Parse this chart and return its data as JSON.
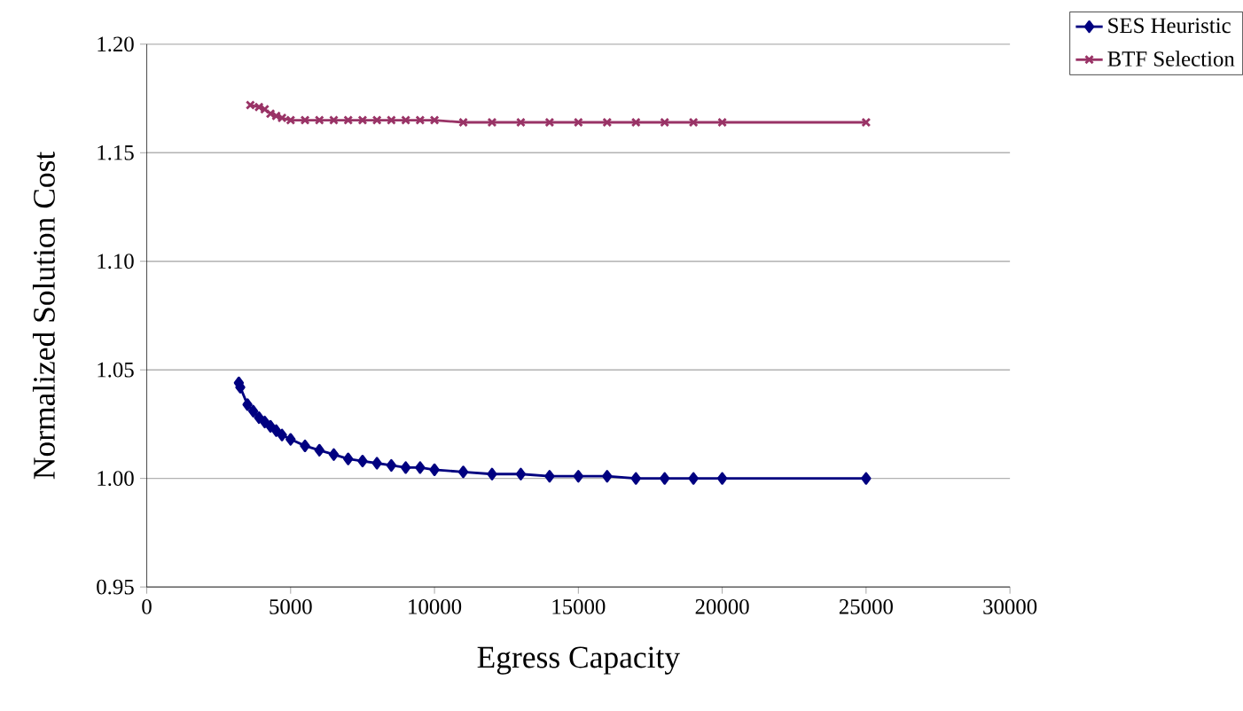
{
  "chart_data": {
    "type": "line",
    "xlabel": "Egress Capacity",
    "ylabel": "Normalized Solution Cost",
    "xlim": [
      0,
      30000
    ],
    "xticks": [
      0,
      5000,
      10000,
      15000,
      20000,
      25000,
      30000
    ],
    "ylim": [
      0.95,
      1.2
    ],
    "yticks": [
      {
        "value": 0.95,
        "label": "0.95"
      },
      {
        "value": 1.0,
        "label": "1.00"
      },
      {
        "value": 1.05,
        "label": "1.05"
      },
      {
        "value": 1.1,
        "label": "1.10"
      },
      {
        "value": 1.15,
        "label": "1.15"
      },
      {
        "value": 1.2,
        "label": "1.20"
      }
    ],
    "grid": "y",
    "legend": "top right",
    "series": [
      {
        "name": "SES Heuristic",
        "color": "#000080",
        "marker": "diamond",
        "x": [
          3200,
          3250,
          3500,
          3700,
          3900,
          4100,
          4300,
          4500,
          4700,
          5000,
          5500,
          6000,
          6500,
          7000,
          7500,
          8000,
          8500,
          9000,
          9500,
          10000,
          11000,
          12000,
          13000,
          14000,
          15000,
          16000,
          17000,
          18000,
          19000,
          20000,
          25000
        ],
        "values": [
          1.044,
          1.042,
          1.034,
          1.031,
          1.028,
          1.026,
          1.024,
          1.022,
          1.02,
          1.018,
          1.015,
          1.013,
          1.011,
          1.009,
          1.008,
          1.007,
          1.006,
          1.005,
          1.005,
          1.004,
          1.003,
          1.002,
          1.002,
          1.001,
          1.001,
          1.001,
          1.0,
          1.0,
          1.0,
          1.0,
          1.0
        ]
      },
      {
        "name": "BTF Selection",
        "color": "#993366",
        "marker": "cross",
        "x": [
          3600,
          3900,
          4100,
          4300,
          4500,
          4700,
          5000,
          5500,
          6000,
          6500,
          7000,
          7500,
          8000,
          8500,
          9000,
          9500,
          10000,
          11000,
          12000,
          13000,
          14000,
          15000,
          16000,
          17000,
          18000,
          19000,
          20000,
          25000
        ],
        "values": [
          1.172,
          1.171,
          1.17,
          1.168,
          1.167,
          1.166,
          1.165,
          1.165,
          1.165,
          1.165,
          1.165,
          1.165,
          1.165,
          1.165,
          1.165,
          1.165,
          1.165,
          1.164,
          1.164,
          1.164,
          1.164,
          1.164,
          1.164,
          1.164,
          1.164,
          1.164,
          1.164,
          1.164
        ]
      }
    ]
  }
}
